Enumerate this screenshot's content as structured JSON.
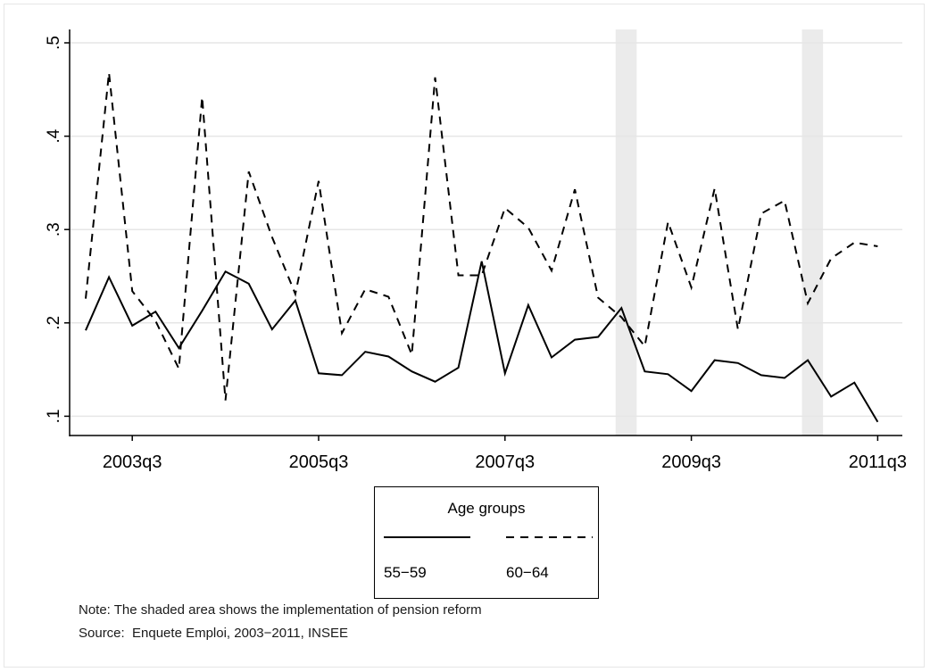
{
  "chart_data": {
    "type": "line",
    "x": [
      "2003q1",
      "2003q2",
      "2003q3",
      "2003q4",
      "2004q1",
      "2004q2",
      "2004q3",
      "2004q4",
      "2005q1",
      "2005q2",
      "2005q3",
      "2005q4",
      "2006q1",
      "2006q2",
      "2006q3",
      "2006q4",
      "2007q1",
      "2007q2",
      "2007q3",
      "2007q4",
      "2008q1",
      "2008q2",
      "2008q3",
      "2008q4",
      "2009q1",
      "2009q2",
      "2009q3",
      "2009q4",
      "2010q1",
      "2010q2",
      "2010q3",
      "2010q4",
      "2011q1",
      "2011q2",
      "2011q3"
    ],
    "x_tick_labels": [
      "2003q3",
      "2005q3",
      "2007q3",
      "2009q3",
      "2011q3"
    ],
    "y_tick_labels": [
      ".1",
      ".2",
      ".3",
      ".4",
      ".5"
    ],
    "ylim": [
      0.09,
      0.51
    ],
    "grid": true,
    "series": [
      {
        "name": "55−59",
        "style": "solid",
        "values": [
          0.192,
          0.249,
          0.197,
          0.212,
          0.173,
          0.213,
          0.255,
          0.242,
          0.193,
          0.224,
          0.146,
          0.144,
          0.169,
          0.164,
          0.148,
          0.137,
          0.152,
          0.266,
          0.146,
          0.219,
          0.163,
          0.182,
          0.185,
          0.216,
          0.148,
          0.145,
          0.127,
          0.16,
          0.157,
          0.144,
          0.141,
          0.16,
          0.121,
          0.136,
          0.094
        ]
      },
      {
        "name": "60−64",
        "style": "dashed",
        "values": [
          0.226,
          0.468,
          0.234,
          0.202,
          0.151,
          0.442,
          0.117,
          0.362,
          0.292,
          0.231,
          0.352,
          0.189,
          0.236,
          0.228,
          0.166,
          0.463,
          0.251,
          0.251,
          0.323,
          0.302,
          0.256,
          0.343,
          0.227,
          0.206,
          0.175,
          0.308,
          0.238,
          0.344,
          0.193,
          0.317,
          0.331,
          0.221,
          0.269,
          0.286,
          0.282
        ]
      }
    ],
    "shaded_periods": [
      [
        "2008q4",
        "2009q1"
      ],
      [
        "2010q4",
        "2011q1"
      ]
    ],
    "legend": {
      "title": "Age groups",
      "placement": "bottom-center"
    },
    "colors": {
      "line": "#000000",
      "shade": "#ebebeb",
      "grid": "#e6e6e6"
    }
  },
  "notes": {
    "note": "Note: The shaded area shows the implementation of pension reform",
    "source": "Source:  Enquete Emploi, 2003−2011, INSEE"
  }
}
